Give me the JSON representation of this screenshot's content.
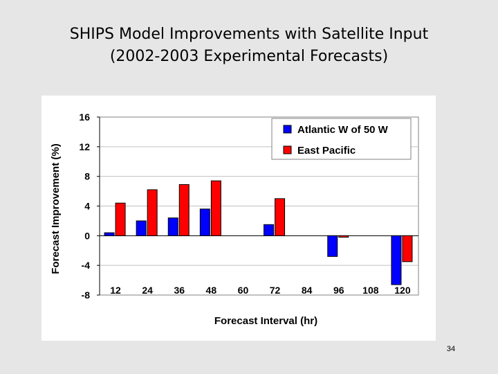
{
  "slide": {
    "title_line1": "SHIPS Model Improvements with Satellite Input",
    "title_line2": "(2002-2003 Experimental Forecasts)",
    "page_number": "34"
  },
  "colors": {
    "series1": "#0000ff",
    "series2": "#ff0000",
    "grid": "#c0c0c0",
    "plot_bg": "#ffffff"
  },
  "chart_data": {
    "type": "bar",
    "title": "",
    "xlabel": "Forecast Interval (hr)",
    "ylabel": "Forecast Improvement (%)",
    "categories": [
      "12",
      "24",
      "36",
      "48",
      "60",
      "72",
      "84",
      "96",
      "108",
      "120"
    ],
    "series": [
      {
        "name": "Atlantic W of 50 W",
        "values": [
          0.4,
          2.0,
          2.4,
          3.6,
          0.0,
          1.5,
          0.0,
          -2.8,
          0.0,
          -6.6
        ]
      },
      {
        "name": "East Pacific",
        "values": [
          4.4,
          6.2,
          6.9,
          7.4,
          0.0,
          5.0,
          0.0,
          -0.2,
          0.0,
          -3.5
        ]
      }
    ],
    "ylim": [
      -8,
      16
    ],
    "yticks": [
      "16",
      "12",
      "8",
      "4",
      "0",
      "-4",
      "-8"
    ],
    "grid": true,
    "legend": "top-right"
  }
}
